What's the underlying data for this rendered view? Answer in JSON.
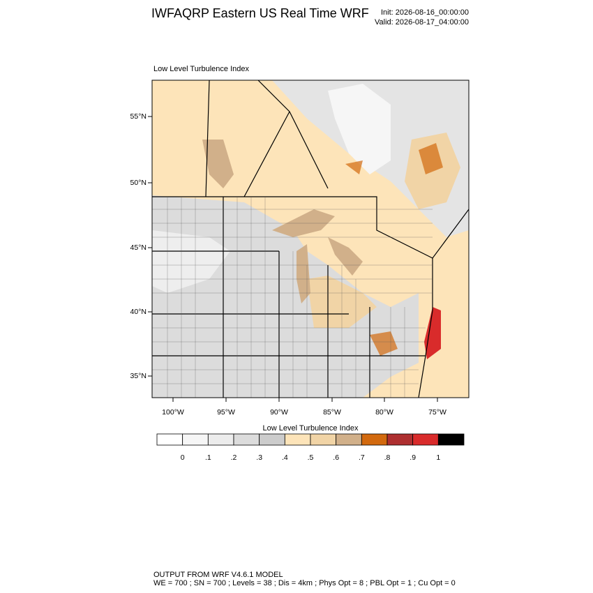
{
  "header": {
    "title": "IWFAQRP Eastern US Real Time WRF",
    "init": "Init: 2026-08-16_00:00:00",
    "valid": "Valid: 2026-08-17_04:00:00"
  },
  "map": {
    "title": "Low Level Turbulence Index",
    "lat_labels": [
      "55°N",
      "50°N",
      "45°N",
      "40°N",
      "35°N"
    ],
    "lon_labels": [
      "100°W",
      "95°W",
      "90°W",
      "85°W",
      "80°W",
      "75°W"
    ]
  },
  "colorbar": {
    "title": "Low Level Turbulence Index",
    "colors": [
      "#ffffff",
      "#f6f6f6",
      "#ececec",
      "#dcdcdc",
      "#cccccc",
      "#fde4b9",
      "#f1d4a6",
      "#d1b08a",
      "#d2690e",
      "#ae2f30",
      "#d92b2b",
      "#000000"
    ],
    "labels": [
      "0",
      ".1",
      ".2",
      ".3",
      ".4",
      ".5",
      ".6",
      ".7",
      ".8",
      ".9",
      "1"
    ]
  },
  "footer": {
    "line1": "OUTPUT FROM WRF V4.6.1 MODEL",
    "line2": "WE = 700 ; SN = 700 ; Levels = 38 ; Dis = 4km ; Phys Opt = 8 ; PBL Opt = 1 ; Cu Opt = 0"
  }
}
